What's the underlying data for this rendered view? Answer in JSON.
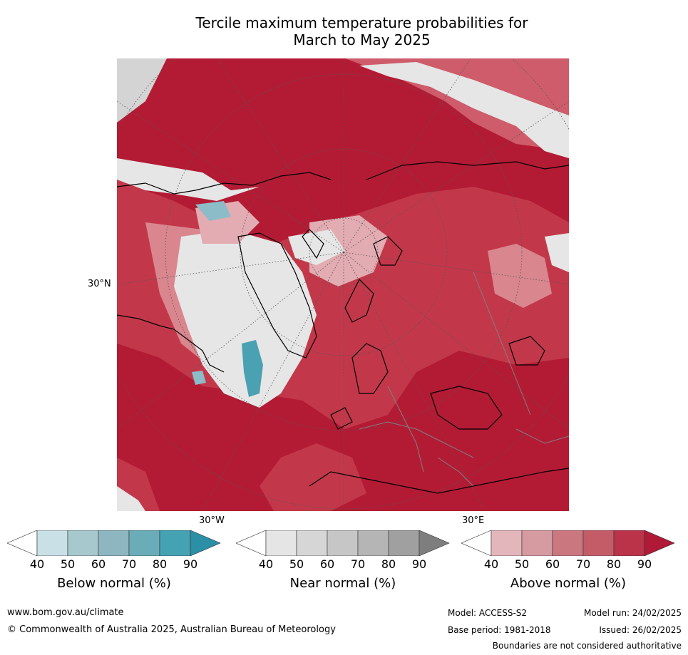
{
  "title_line1": "Tercile maximum temperature probabilities for",
  "title_line2": "March to May 2025",
  "map": {
    "lat_label": "30°N",
    "lon_label_west": "30°W",
    "lon_label_east": "30°E",
    "colors": {
      "above_90": "#b31b34",
      "above_80": "#c2384a",
      "above_70": "#ce5c6a",
      "above_60": "#d9868f",
      "above_50": "#e2acb2",
      "near": "#e6e6e6",
      "near_dark": "#d4d4d4",
      "below": "#8bbcc8",
      "below_dark": "#4aa1b2"
    }
  },
  "colorbars": [
    {
      "title": "Below normal (%)",
      "ticks": [
        "40",
        "50",
        "60",
        "70",
        "80",
        "90"
      ],
      "colors": [
        "#ffffff",
        "#c9e1e6",
        "#a7c8cd",
        "#8db6c1",
        "#6aadb9",
        "#44a2b3",
        "#2b8fa5"
      ]
    },
    {
      "title": "Near normal (%)",
      "ticks": [
        "40",
        "50",
        "60",
        "70",
        "80",
        "90"
      ],
      "colors": [
        "#ffffff",
        "#e5e5e5",
        "#d6d6d6",
        "#c6c6c6",
        "#b5b5b5",
        "#a0a0a0",
        "#7e7e7e"
      ]
    },
    {
      "title": "Above normal (%)",
      "ticks": [
        "40",
        "50",
        "60",
        "70",
        "80",
        "90"
      ],
      "colors": [
        "#ffffff",
        "#e3b6bb",
        "#d69aa1",
        "#ca7780",
        "#c35c67",
        "#bb3349",
        "#b01a36"
      ]
    }
  ],
  "footer": {
    "url": "www.bom.gov.au/climate",
    "copyright": "© Commonwealth of Australia 2025, Australian Bureau of Meteorology",
    "model": "Model: ACCESS-S2",
    "model_run": "Model run: 24/02/2025",
    "base_period": "Base period: 1981-2018",
    "issued": "Issued: 26/02/2025",
    "disclaimer": "Boundaries are not considered authoritative"
  }
}
